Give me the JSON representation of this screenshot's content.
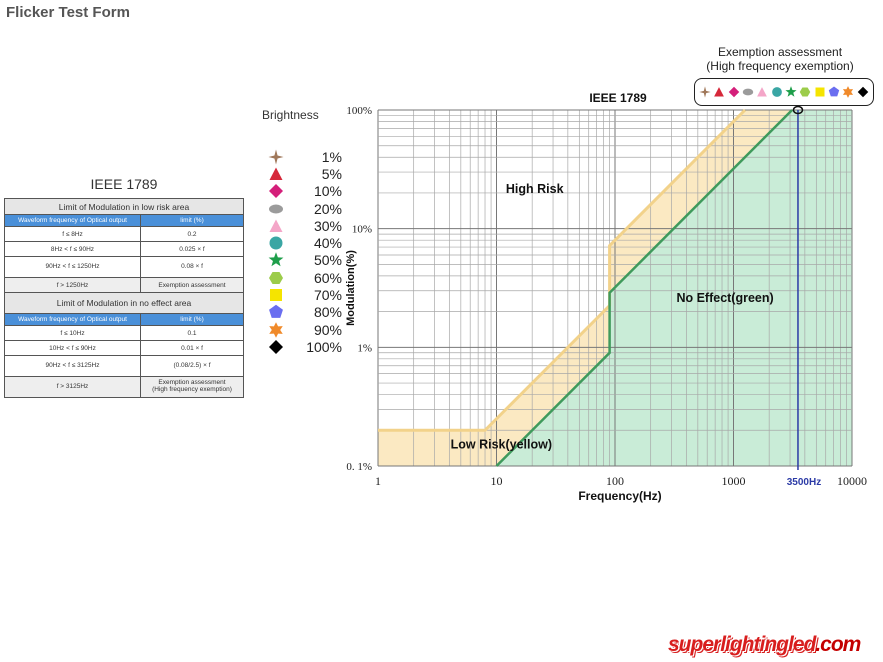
{
  "page": {
    "title": "Flicker Test Form"
  },
  "table": {
    "title": "IEEE 1789",
    "sections": [
      {
        "heading": "Limit of Modulation in low risk area",
        "col_headers": [
          "Waveform frequency of Optical output",
          "limit (%)"
        ],
        "rows": [
          [
            "f  ≤  8Hz",
            "0.2"
          ],
          [
            "8Hz <  f  ≤  90Hz",
            "0.025 × f"
          ],
          [
            "90Hz <  f  ≤  1250Hz",
            "0.08 × f"
          ],
          [
            "f  > 1250Hz",
            "Exemption assessment"
          ]
        ]
      },
      {
        "heading": "Limit of Modulation in no effect area",
        "col_headers": [
          "Waveform frequency of Optical output",
          "limit (%)"
        ],
        "rows": [
          [
            "f  ≤  10Hz",
            "0.1"
          ],
          [
            "10Hz < f  ≤  90Hz",
            "0.01 × f"
          ],
          [
            "90Hz <  f  ≤  3125Hz",
            "(0.08/2.5)  ×   f"
          ],
          [
            "f  > 3125Hz",
            "Exemption assessment\n(High frequency exemption)"
          ]
        ]
      }
    ]
  },
  "brightness": {
    "title": "Brightness",
    "items": [
      {
        "label": "1%",
        "shape": "star4",
        "color": "#a0785a"
      },
      {
        "label": "5%",
        "shape": "triangle",
        "color": "#d6283a"
      },
      {
        "label": "10%",
        "shape": "diamond",
        "color": "#d41f7a"
      },
      {
        "label": "20%",
        "shape": "ellipse",
        "color": "#9b9b9b"
      },
      {
        "label": "30%",
        "shape": "triangle",
        "color": "#f4a6c8"
      },
      {
        "label": "40%",
        "shape": "circle",
        "color": "#3aa6a4"
      },
      {
        "label": "50%",
        "shape": "star5",
        "color": "#1e9e4a"
      },
      {
        "label": "60%",
        "shape": "hexagon",
        "color": "#9ccc4a"
      },
      {
        "label": "70%",
        "shape": "square",
        "color": "#f5e400"
      },
      {
        "label": "80%",
        "shape": "pentagon",
        "color": "#6a6ef0"
      },
      {
        "label": "90%",
        "shape": "star6",
        "color": "#f08a2a"
      },
      {
        "label": "100%",
        "shape": "diamond",
        "color": "#000000"
      }
    ]
  },
  "exemption": {
    "title_line1": "Exemption assessment",
    "title_line2": "(High frequency exemption)"
  },
  "chart_data": {
    "type": "line",
    "title": "IEEE 1789",
    "xlabel": "Frequency(Hz)",
    "ylabel": "Modulation(%)",
    "x_scale": "log",
    "y_scale": "log",
    "xlim": [
      1,
      10000
    ],
    "ylim": [
      0.1,
      100
    ],
    "x_ticks": [
      {
        "value": 1,
        "label": "1"
      },
      {
        "value": 10,
        "label": "10"
      },
      {
        "value": 100,
        "label": "100"
      },
      {
        "value": 1000,
        "label": "1000"
      },
      {
        "value": 10000,
        "label": "10000"
      }
    ],
    "y_ticks": [
      {
        "value": 0.1,
        "label": "0. 1%"
      },
      {
        "value": 1,
        "label": "1%"
      },
      {
        "value": 10,
        "label": "10%"
      },
      {
        "value": 100,
        "label": "100%"
      }
    ],
    "grid": true,
    "series": [
      {
        "x": [
          1,
          8,
          90,
          90,
          1250
        ],
        "y": [
          0.2,
          0.2,
          2.25,
          7.2,
          100
        ],
        "color": "#f2d28a"
      },
      {
        "x": [
          10,
          90,
          90,
          3125
        ],
        "y": [
          0.1,
          0.9,
          2.88,
          100
        ],
        "color": "#3f9a5c"
      }
    ],
    "marker_line": {
      "x": 3500,
      "label": "3500Hz",
      "color": "#2b3aa6"
    },
    "annotations": [
      {
        "text": "High Risk",
        "x": 12,
        "y": 20
      },
      {
        "text": "No Effect(green)",
        "x": 330,
        "y": 2.4
      },
      {
        "text": "Low Risk(yellow)",
        "x": 4.1,
        "y": 0.14
      }
    ]
  },
  "logo": {
    "part1": "super",
    "part2": "lightingled",
    "part3": ".com"
  }
}
